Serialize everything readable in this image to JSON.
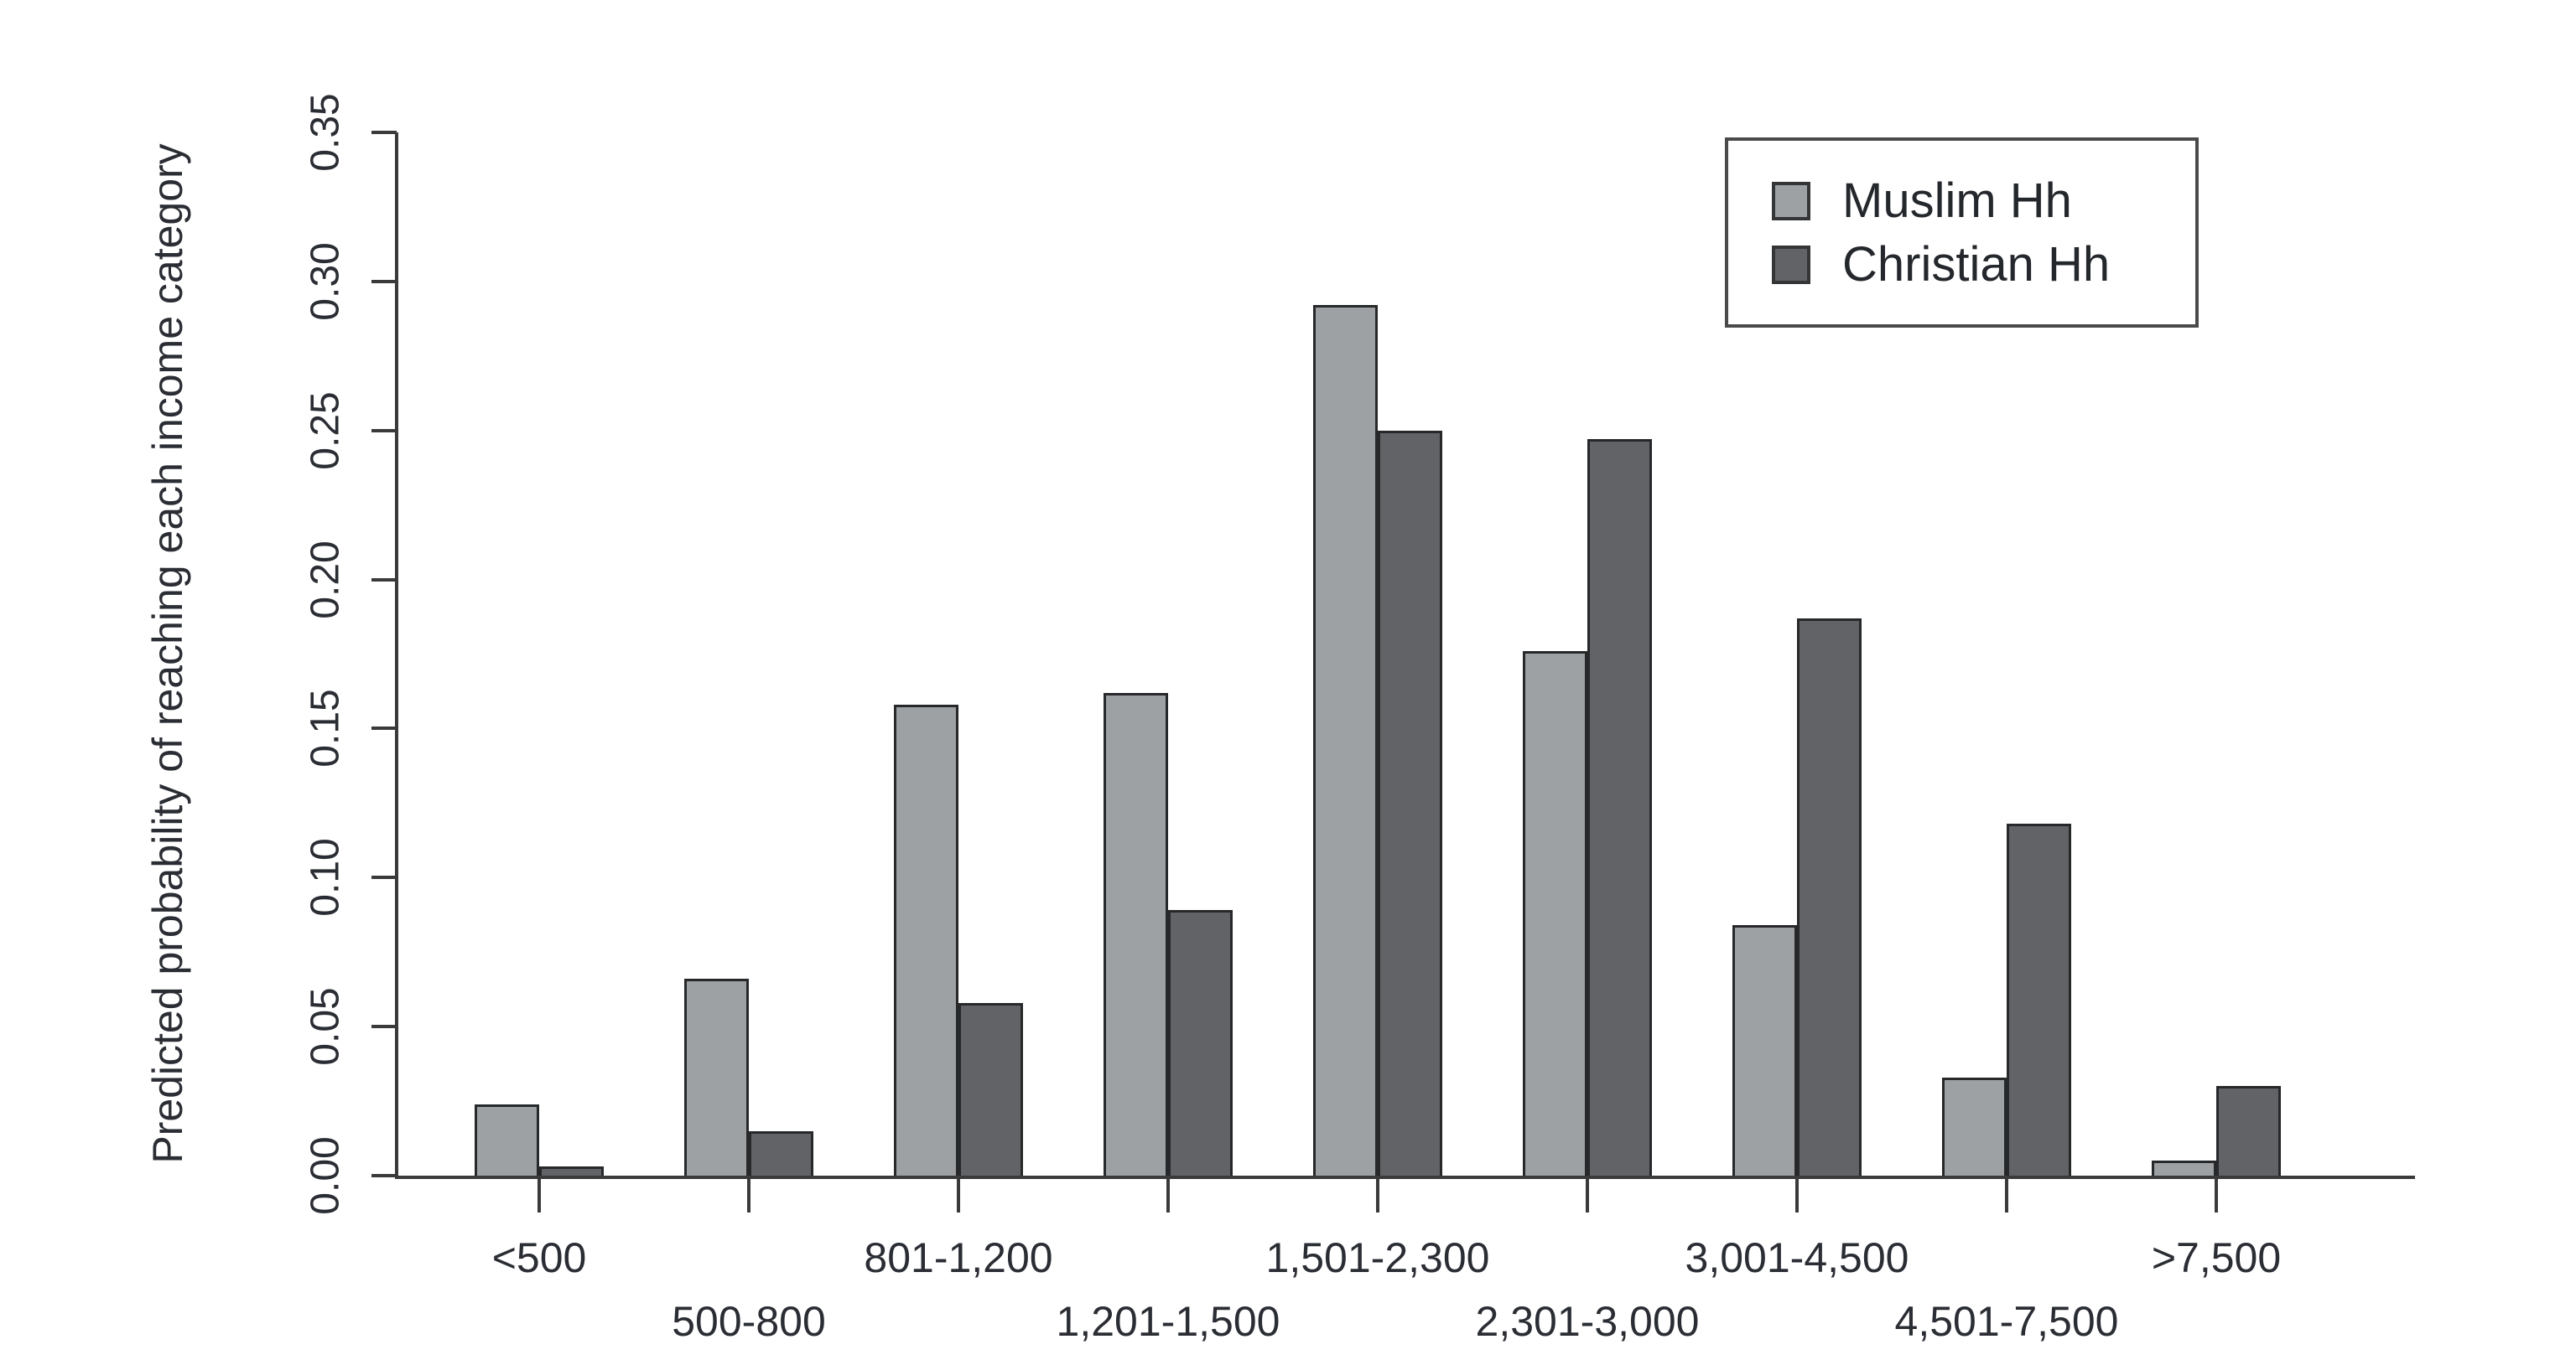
{
  "figure": {
    "background_color": "#ffffff",
    "text_color": "#2a2d33",
    "axis_color": "#3a3a3a",
    "bar_outline_color": "#26282a"
  },
  "chart_data": {
    "type": "bar",
    "title": "",
    "xlabel": "",
    "ylabel": "Predicted probability of reaching each income category",
    "categories": [
      "<500",
      "500-800",
      "801-1,200",
      "1,201-1,500",
      "1,501-2,300",
      "2,301-3,000",
      "3,001-4,500",
      "4,501-7,500",
      ">7,500"
    ],
    "series": [
      {
        "name": "Muslim Hh",
        "color": "#9ea1a4",
        "values": [
          0.024,
          0.066,
          0.158,
          0.162,
          0.292,
          0.176,
          0.084,
          0.033,
          0.005
        ]
      },
      {
        "name": "Christian Hh",
        "color": "#626366",
        "values": [
          0.003,
          0.015,
          0.058,
          0.089,
          0.25,
          0.247,
          0.187,
          0.118,
          0.03
        ]
      }
    ],
    "ylim": [
      0,
      0.35
    ],
    "yticks": [
      "0.00",
      "0.05",
      "0.10",
      "0.15",
      "0.20",
      "0.25",
      "0.30",
      "0.35"
    ],
    "ytick_values": [
      0.0,
      0.05,
      0.1,
      0.15,
      0.2,
      0.25,
      0.3,
      0.35
    ],
    "grid": false,
    "legend_position": "top-right",
    "x_label_layout": "staggered-two-rows"
  },
  "legend": {
    "items": [
      {
        "label": "Muslim Hh",
        "color": "#9ea1a4"
      },
      {
        "label": "Christian Hh",
        "color": "#626366"
      }
    ]
  }
}
